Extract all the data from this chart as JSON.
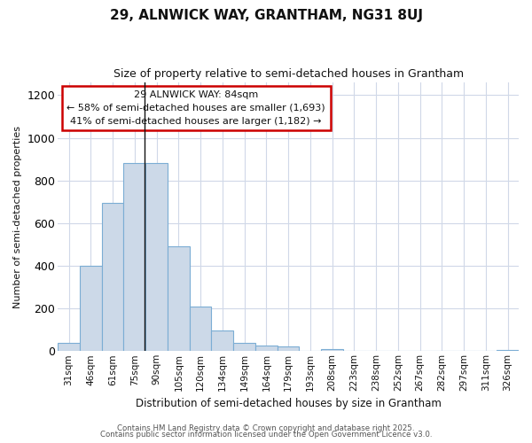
{
  "title1": "29, ALNWICK WAY, GRANTHAM, NG31 8UJ",
  "title2": "Size of property relative to semi-detached houses in Grantham",
  "xlabel": "Distribution of semi-detached houses by size in Grantham",
  "ylabel": "Number of semi-detached properties",
  "categories": [
    "31sqm",
    "46sqm",
    "61sqm",
    "75sqm",
    "90sqm",
    "105sqm",
    "120sqm",
    "134sqm",
    "149sqm",
    "164sqm",
    "179sqm",
    "193sqm",
    "208sqm",
    "223sqm",
    "238sqm",
    "252sqm",
    "267sqm",
    "282sqm",
    "297sqm",
    "311sqm",
    "326sqm"
  ],
  "values": [
    40,
    400,
    695,
    880,
    880,
    490,
    210,
    95,
    40,
    25,
    20,
    0,
    10,
    0,
    0,
    0,
    0,
    0,
    0,
    0,
    5
  ],
  "bar_color": "#ccd9e8",
  "bar_edge_color": "#7badd4",
  "ylim": [
    0,
    1260
  ],
  "yticks": [
    0,
    200,
    400,
    600,
    800,
    1000,
    1200
  ],
  "annotation_title": "29 ALNWICK WAY: 84sqm",
  "annotation_line1": "← 58% of semi-detached houses are smaller (1,693)",
  "annotation_line2": "41% of semi-detached houses are larger (1,182) →",
  "annotation_box_color": "#ffffff",
  "annotation_box_edge": "#cc0000",
  "vline_color": "#111111",
  "footer1": "Contains HM Land Registry data © Crown copyright and database right 2025.",
  "footer2": "Contains public sector information licensed under the Open Government Licence v3.0.",
  "bg_color": "#ffffff",
  "grid_color": "#d0d8e8",
  "title_color": "#111111"
}
